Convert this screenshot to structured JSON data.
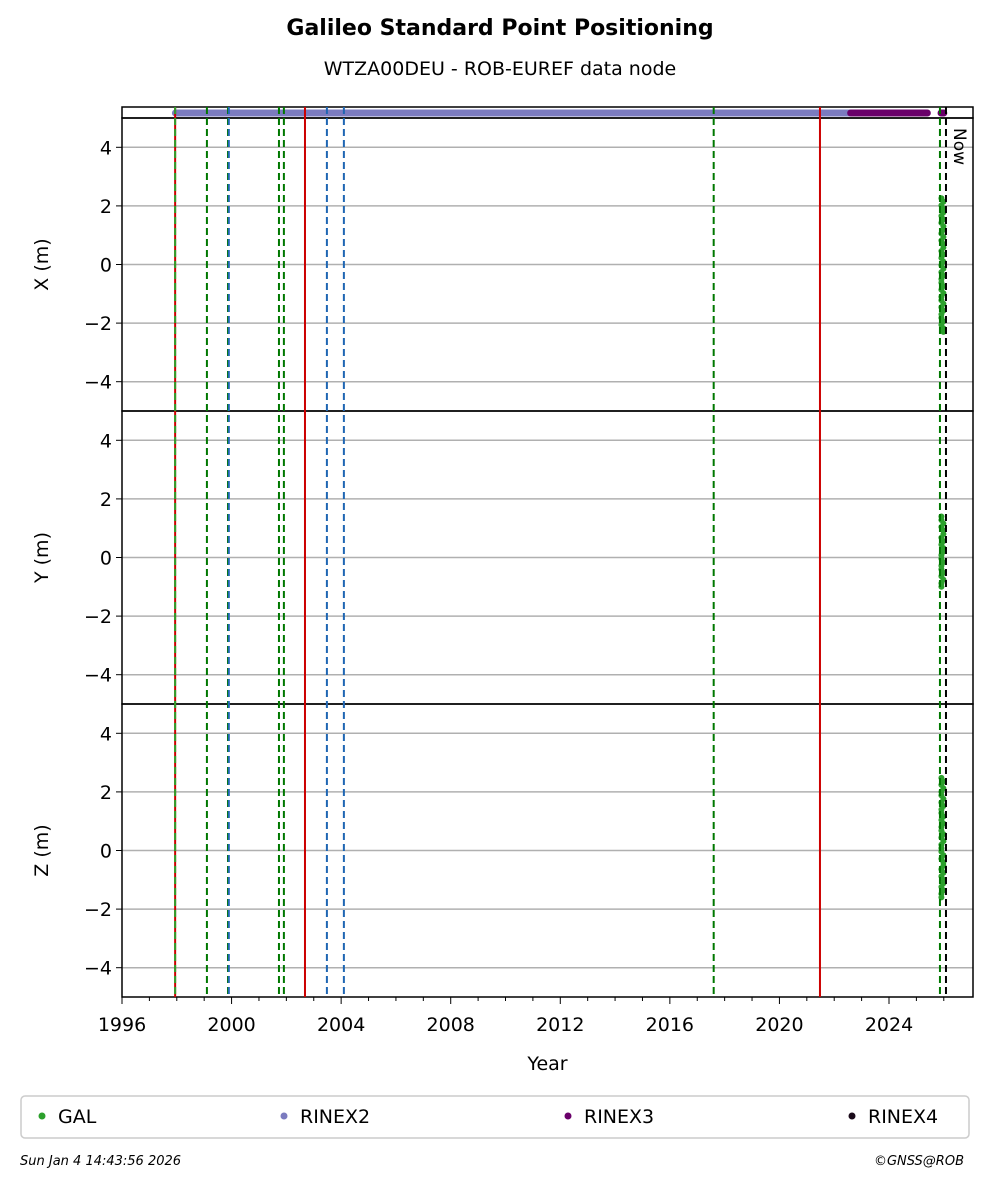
{
  "chart_data": {
    "type": "scatter",
    "title": "Galileo Standard Point Positioning",
    "subtitle": "WTZA00DEU - ROB-EUREF data node",
    "xlabel": "Year",
    "xlim": [
      1996,
      2026.9
    ],
    "xticks": [
      1996,
      2000,
      2004,
      2008,
      2012,
      2016,
      2020,
      2024
    ],
    "grid": true,
    "legend_placement": "bottom",
    "panels": [
      {
        "ylabel": "X (m)",
        "ylim": [
          -5,
          5
        ],
        "yticks": [
          4,
          2,
          0,
          -2,
          -4
        ],
        "gal_range": [
          -2.3,
          2.3
        ]
      },
      {
        "ylabel": "Y (m)",
        "ylim": [
          -5,
          5
        ],
        "yticks": [
          4,
          2,
          0,
          -2,
          -4
        ],
        "gal_range": [
          -1,
          1.4
        ]
      },
      {
        "ylabel": "Z (m)",
        "ylim": [
          -5,
          5
        ],
        "yticks": [
          4,
          2,
          0,
          -2,
          -4
        ],
        "gal_range": [
          -1.6,
          2.5
        ]
      }
    ],
    "gal_time": 2025.95,
    "data_availability": [
      {
        "name": "RINEX2",
        "start": 1997.95,
        "end": 2022.7,
        "color": "#7b7bbf"
      },
      {
        "name": "RINEX3",
        "start": 2022.6,
        "end": 2025.4,
        "color": "#6a006a"
      },
      {
        "name": "RINEX3",
        "start": 2025.9,
        "end": 2026.0,
        "color": "#6a006a"
      }
    ],
    "events": [
      {
        "year": 1997.94,
        "color": "#cc0000",
        "style": "solid"
      },
      {
        "year": 1997.94,
        "color": "#2ca02c",
        "style": "dashed"
      },
      {
        "year": 2002.68,
        "color": "#cc0000",
        "style": "solid"
      },
      {
        "year": 2021.48,
        "color": "#cc0000",
        "style": "solid"
      },
      {
        "year": 1999.1,
        "color": "#007700",
        "style": "dashed"
      },
      {
        "year": 1999.87,
        "color": "#007700",
        "style": "dashed"
      },
      {
        "year": 1999.9,
        "color": "#1f66b3",
        "style": "dashed"
      },
      {
        "year": 2001.73,
        "color": "#007700",
        "style": "dashed"
      },
      {
        "year": 2001.91,
        "color": "#007700",
        "style": "dashed"
      },
      {
        "year": 2003.48,
        "color": "#1f66b3",
        "style": "dashed"
      },
      {
        "year": 2004.1,
        "color": "#1f66b3",
        "style": "dashed"
      },
      {
        "year": 2017.6,
        "color": "#007700",
        "style": "dashed"
      },
      {
        "year": 2025.86,
        "color": "#007700",
        "style": "dashed"
      },
      {
        "year": 2026.08,
        "color": "#000000",
        "style": "dashed",
        "label": "Now"
      }
    ],
    "legend": [
      {
        "name": "GAL",
        "color": "#2ca02c"
      },
      {
        "name": "RINEX2",
        "color": "#7b7bbf"
      },
      {
        "name": "RINEX3",
        "color": "#6a006a"
      },
      {
        "name": "RINEX4",
        "color": "#1a0a1a"
      }
    ]
  },
  "footer": {
    "timestamp": "Sun Jan  4 14:43:56 2026",
    "credit": "©GNSS@ROB"
  }
}
